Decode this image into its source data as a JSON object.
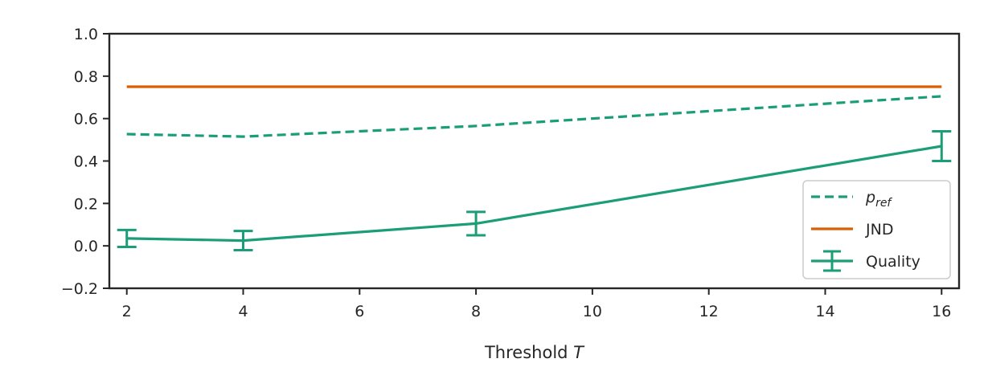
{
  "chart_data": {
    "type": "line",
    "x": [
      2,
      4,
      8,
      16
    ],
    "xticks": [
      2,
      4,
      6,
      8,
      10,
      12,
      14,
      16
    ],
    "xtick_labels": [
      "2",
      "4",
      "6",
      "8",
      "10",
      "12",
      "14",
      "16"
    ],
    "yticks": [
      -0.2,
      0.0,
      0.2,
      0.4,
      0.6,
      0.8,
      1.0
    ],
    "ytick_labels": [
      "−0.2",
      "0.0",
      "0.2",
      "0.4",
      "0.6",
      "0.8",
      "1.0"
    ],
    "xlim": [
      1.7,
      16.3
    ],
    "ylim": [
      -0.2,
      1.0
    ],
    "xlabel": "Threshold",
    "xlabel_var": "T",
    "ylabel": "",
    "grid": false,
    "legend_position": "lower-right",
    "series": [
      {
        "name_main": "p",
        "name_sub": "ref",
        "values": [
          0.527,
          0.515,
          0.565,
          0.705
        ],
        "color": "#1b9e77",
        "style": "dashed"
      },
      {
        "name": "JND",
        "values": [
          0.75,
          0.75,
          0.75,
          0.75
        ],
        "color": "#d95f02",
        "style": "solid"
      },
      {
        "name": "Quality",
        "values": [
          0.035,
          0.025,
          0.105,
          0.47
        ],
        "error": [
          0.04,
          0.045,
          0.055,
          0.07
        ],
        "color": "#1b9e77",
        "style": "solid-errorbar"
      }
    ]
  }
}
